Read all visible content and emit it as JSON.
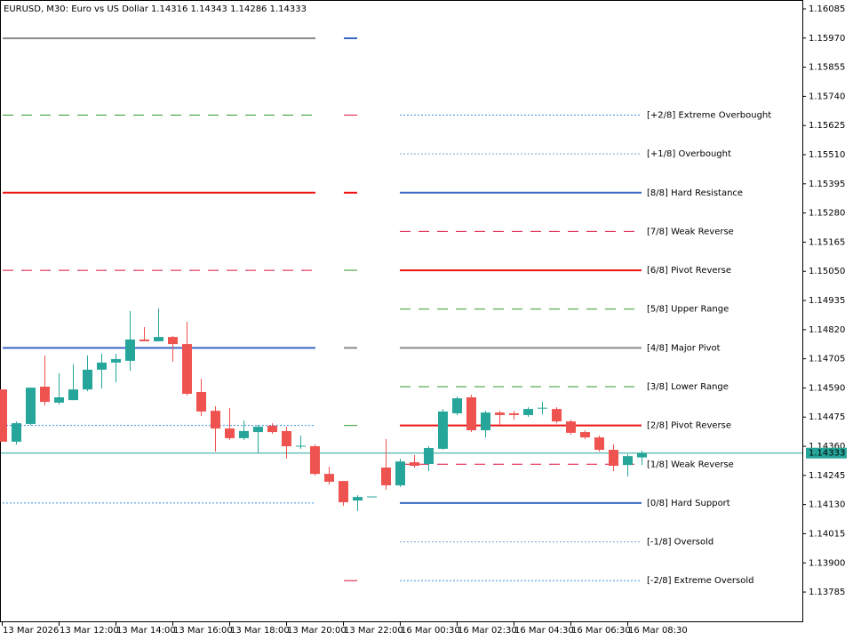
{
  "chart_data": {
    "type": "candlestick",
    "title": "EURUSD, M30:  Euro vs US Dollar  1.14316 1.14343 1.14286 1.14333",
    "categories": [
      "13 Mar 2026",
      null,
      null,
      null,
      "13 Mar 12:00",
      null,
      null,
      null,
      "13 Mar 14:00",
      null,
      null,
      null,
      "13 Mar 16:00",
      null,
      null,
      null,
      "13 Mar 18:00",
      null,
      null,
      null,
      "13 Mar 20:00",
      null,
      null,
      null,
      "13 Mar 22:00",
      null,
      null,
      null,
      "16 Mar 00:30",
      null,
      null,
      null,
      "16 Mar 02:30",
      null,
      null,
      null,
      "16 Mar 04:30",
      null,
      null,
      null,
      "16 Mar 06:30",
      null,
      null,
      null,
      "16 Mar 08:30",
      null
    ],
    "open": [
      1.14584,
      1.14378,
      1.14448,
      1.14595,
      1.14532,
      1.14542,
      1.14584,
      1.14662,
      1.1469,
      1.14697,
      1.14781,
      1.14774,
      1.14791,
      1.14763,
      1.14574,
      1.145,
      1.1443,
      1.14392,
      1.14416,
      1.14441,
      1.1442,
      1.1436,
      1.1436,
      1.14251,
      1.14223,
      1.14146,
      1.1416,
      1.14276,
      1.14206,
      1.14297,
      1.1429,
      1.1435,
      1.1449,
      1.14553,
      1.14423,
      1.14493,
      1.1449,
      1.14483,
      1.14511,
      1.14507,
      1.14458,
      1.14416,
      1.14395,
      1.14346,
      1.14286,
      1.14316
    ],
    "high": [
      1.14584,
      1.14458,
      1.14591,
      1.14718,
      1.14648,
      1.14683,
      1.14718,
      1.14725,
      1.14725,
      1.14893,
      1.1483,
      1.14903,
      1.14795,
      1.14851,
      1.14626,
      1.14518,
      1.14511,
      1.14462,
      1.14444,
      1.14451,
      1.14437,
      1.14402,
      1.14367,
      1.14279,
      1.14223,
      1.14167,
      1.14162,
      1.14388,
      1.14311,
      1.14325,
      1.1436,
      1.14507,
      1.14556,
      1.14563,
      1.145,
      1.145,
      1.145,
      1.14514,
      1.14535,
      1.14514,
      1.14465,
      1.14423,
      1.14402,
      1.14367,
      1.14328,
      1.14343
    ],
    "low": [
      1.14378,
      1.14367,
      1.14444,
      1.14521,
      1.14525,
      1.14542,
      1.14577,
      1.14588,
      1.14612,
      1.14658,
      1.14774,
      1.14774,
      1.14693,
      1.1456,
      1.14479,
      1.14339,
      1.14385,
      1.14385,
      1.14332,
      1.14409,
      1.14311,
      1.1435,
      1.14244,
      1.14209,
      1.14125,
      1.14104,
      1.1416,
      1.14188,
      1.14199,
      1.14276,
      1.14262,
      1.14346,
      1.14483,
      1.14416,
      1.14395,
      1.14444,
      1.14465,
      1.14476,
      1.14486,
      1.14451,
      1.14406,
      1.14388,
      1.14339,
      1.14262,
      1.14241,
      1.14286
    ],
    "close": [
      1.14378,
      1.14451,
      1.14591,
      1.14535,
      1.14553,
      1.14584,
      1.14662,
      1.1469,
      1.14704,
      1.14781,
      1.14774,
      1.14791,
      1.14763,
      1.14567,
      1.14497,
      1.1443,
      1.14392,
      1.1442,
      1.14437,
      1.14416,
      1.1436,
      1.14362,
      1.14251,
      1.1422,
      1.14139,
      1.1416,
      1.14162,
      1.14206,
      1.143,
      1.14283,
      1.14353,
      1.14497,
      1.14549,
      1.14423,
      1.14493,
      1.14483,
      1.14483,
      1.14507,
      1.14512,
      1.14458,
      1.14413,
      1.14395,
      1.14346,
      1.14283,
      1.14321,
      1.14333
    ],
    "up_color": "#26a69a",
    "down_color": "#ef5350",
    "last_price": 1.14333,
    "last_price_color": "#26a69a",
    "ylim": [
      1.13666,
      1.1612
    ],
    "yticks": [
      1.16085,
      {
        "value": 1.1597,
        "label": "1.15970"
      },
      1.15855,
      {
        "value": 1.1574,
        "label": "1.15740"
      },
      1.15625,
      {
        "value": 1.1551,
        "label": "1.15510"
      },
      1.15395,
      {
        "value": 1.1528,
        "label": "1.15280"
      },
      1.15165,
      {
        "value": 1.1505,
        "label": "1.15050"
      },
      1.14935,
      {
        "value": 1.1482,
        "label": "1.14820"
      },
      1.14705,
      {
        "value": 1.1459,
        "label": "1.14590"
      },
      1.14475,
      {
        "value": 1.1436,
        "label": "1.14360"
      },
      1.14245,
      {
        "value": 1.1413,
        "label": "1.14130"
      },
      1.14015,
      {
        "value": 1.139,
        "label": "1.13900"
      },
      1.13785
    ],
    "levels": [
      {
        "label": "[+2/8] Extreme Overbought",
        "value": 1.15666,
        "color": "#3d8fe0",
        "dash": "dotted"
      },
      {
        "label": "[+1/8] Overbought",
        "value": 1.15513,
        "color": "#6fa3dc",
        "dash": "dotted"
      },
      {
        "label": "[8/8] Hard Resistance",
        "value": 1.1536,
        "color": "#3a66c4",
        "dash": "solid"
      },
      {
        "label": "[7/8] Weak Reverse",
        "value": 1.15207,
        "color": "#dc143c",
        "dash": "dashed"
      },
      {
        "label": "[6/8] Pivot Reverse",
        "value": 1.15054,
        "color": "#ee1111",
        "dash": "solid"
      },
      {
        "label": "[5/8] Upper Range",
        "value": 1.14901,
        "color": "#2e9a2e",
        "dash": "dashed"
      },
      {
        "label": "[4/8] Major Pivot",
        "value": 1.14748,
        "color": "#8a8a8a",
        "dash": "solid"
      },
      {
        "label": "[3/8] Lower Range",
        "value": 1.14595,
        "color": "#2e9a2e",
        "dash": "dashed"
      },
      {
        "label": "[2/8] Pivot Reverse",
        "value": 1.14442,
        "color": "#ee1111",
        "dash": "solid"
      },
      {
        "label": "[1/8] Weak Reverse",
        "value": 1.14289,
        "color": "#dc143c",
        "dash": "dashed"
      },
      {
        "label": "[0/8] Hard Support",
        "value": 1.14136,
        "color": "#3a66c4",
        "dash": "solid"
      },
      {
        "label": "[-1/8] Oversold",
        "value": 1.13983,
        "color": "#6fa3dc",
        "dash": "dotted"
      },
      {
        "label": "[-2/8] Extreme Oversold",
        "value": 1.1383,
        "color": "#3d8fe0",
        "dash": "dotted"
      }
    ],
    "previous_levels": [
      {
        "value": 1.15969,
        "color": "#8a8a8a",
        "dash": "solid"
      },
      {
        "value": 1.15666,
        "color": "#2e9a2e",
        "dash": "dashed"
      },
      {
        "value": 1.1536,
        "color": "#ee1111",
        "dash": "solid"
      },
      {
        "value": 1.15054,
        "color": "#dc143c",
        "dash": "dashed"
      },
      {
        "value": 1.14748,
        "color": "#3a66c4",
        "dash": "solid"
      },
      {
        "value": 1.14442,
        "color": "#3d8fe0",
        "dash": "dotted"
      },
      {
        "value": 1.14136,
        "color": "#3d8fe0",
        "dash": "dotted"
      }
    ],
    "markers": [
      {
        "value": 1.15969,
        "color": "#3a66c4",
        "dash": "solid"
      },
      {
        "value": 1.15666,
        "color": "#dc143c",
        "dash": "dashed"
      },
      {
        "value": 1.1536,
        "color": "#ee1111",
        "dash": "solid"
      },
      {
        "value": 1.15054,
        "color": "#2e9a2e",
        "dash": "dashed"
      },
      {
        "value": 1.14748,
        "color": "#8a8a8a",
        "dash": "solid"
      },
      {
        "value": 1.14442,
        "color": "#2e9a2e",
        "dash": "dashed"
      },
      {
        "value": 1.1383,
        "color": "#dc143c",
        "dash": "dashed"
      }
    ]
  }
}
